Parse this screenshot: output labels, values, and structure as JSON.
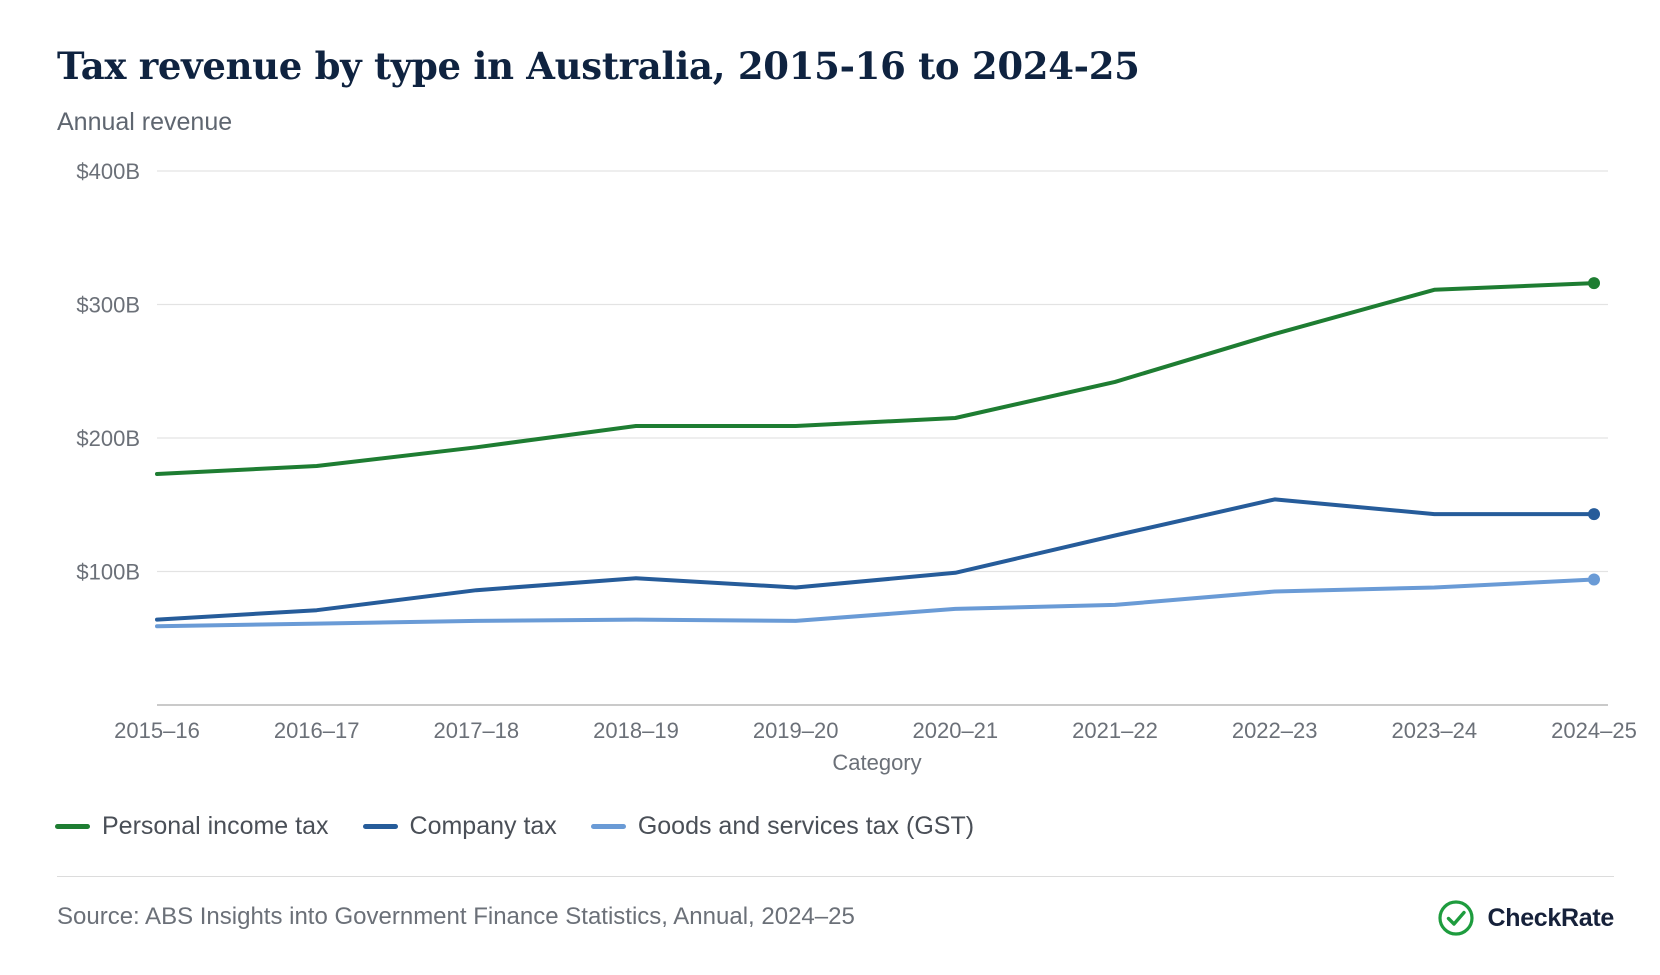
{
  "header": {
    "title": "Tax revenue by type in Australia, 2015-16 to 2024-25",
    "subtitle": "Annual revenue"
  },
  "chart_data": {
    "type": "line",
    "title": "Tax revenue by type in Australia, 2015-16 to 2024-25",
    "subtitle": "Annual revenue",
    "xlabel": "Category",
    "ylabel": "",
    "categories": [
      "2015–16",
      "2016–17",
      "2017–18",
      "2018–19",
      "2019–20",
      "2020–21",
      "2021–22",
      "2022–23",
      "2023–24",
      "2024–25"
    ],
    "ylim": [
      0,
      400
    ],
    "yticks": [
      100,
      200,
      300,
      400
    ],
    "ytick_labels": [
      "$100B",
      "$200B",
      "$300B",
      "$400B"
    ],
    "grid": true,
    "legend_position": "bottom-left",
    "series": [
      {
        "name": "Personal income tax",
        "color": "#1e7d32",
        "values": [
          173,
          179,
          193,
          209,
          209,
          215,
          242,
          278,
          311,
          316
        ]
      },
      {
        "name": "Company tax",
        "color": "#265c9a",
        "values": [
          64,
          71,
          86,
          95,
          88,
          99,
          127,
          154,
          143,
          143
        ]
      },
      {
        "name": "Goods and services tax (GST)",
        "color": "#6a9bd6",
        "values": [
          59,
          61,
          63,
          64,
          63,
          72,
          75,
          85,
          88,
          94
        ]
      }
    ]
  },
  "footer": {
    "source": "Source: ABS Insights into Government Finance Statistics, Annual, 2024–25",
    "brand": "CheckRate",
    "brand_icon": "check-circle-icon",
    "brand_color": "#1e9c3e"
  }
}
